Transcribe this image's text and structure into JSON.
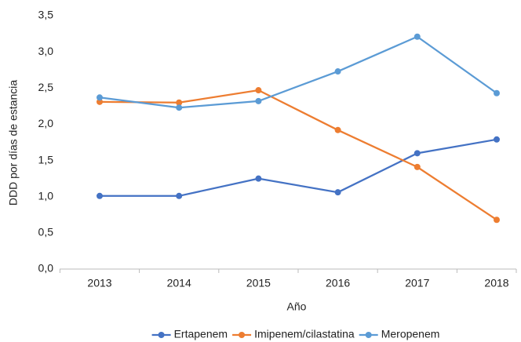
{
  "chart_data": {
    "type": "line",
    "x_label": "Año",
    "y_label": "DDD por días de estancia",
    "categories": [
      "2013",
      "2014",
      "2015",
      "2016",
      "2017",
      "2018"
    ],
    "series": [
      {
        "name": "Ertapenem",
        "color": "#4472c4",
        "values": [
          1.01,
          1.01,
          1.25,
          1.06,
          1.6,
          1.79
        ]
      },
      {
        "name": "Imipenem/cilastatina",
        "color": "#ed7d31",
        "values": [
          2.31,
          2.3,
          2.47,
          1.92,
          1.41,
          0.68
        ]
      },
      {
        "name": "Meropenem",
        "color": "#5b9bd5",
        "values": [
          2.37,
          2.23,
          2.32,
          2.73,
          3.21,
          2.43
        ]
      }
    ],
    "ylim": [
      0,
      3.5
    ],
    "yticks": [
      {
        "value": 0,
        "label": "0,0"
      },
      {
        "value": 0.5,
        "label": "0,5"
      },
      {
        "value": 1,
        "label": "1,0"
      },
      {
        "value": 1.5,
        "label": "1,5"
      },
      {
        "value": 2,
        "label": "2,0"
      },
      {
        "value": 2.5,
        "label": "2,5"
      },
      {
        "value": 3,
        "label": "3,0"
      },
      {
        "value": 3.5,
        "label": "3,5"
      }
    ],
    "grid": false,
    "legend": "bottom"
  }
}
